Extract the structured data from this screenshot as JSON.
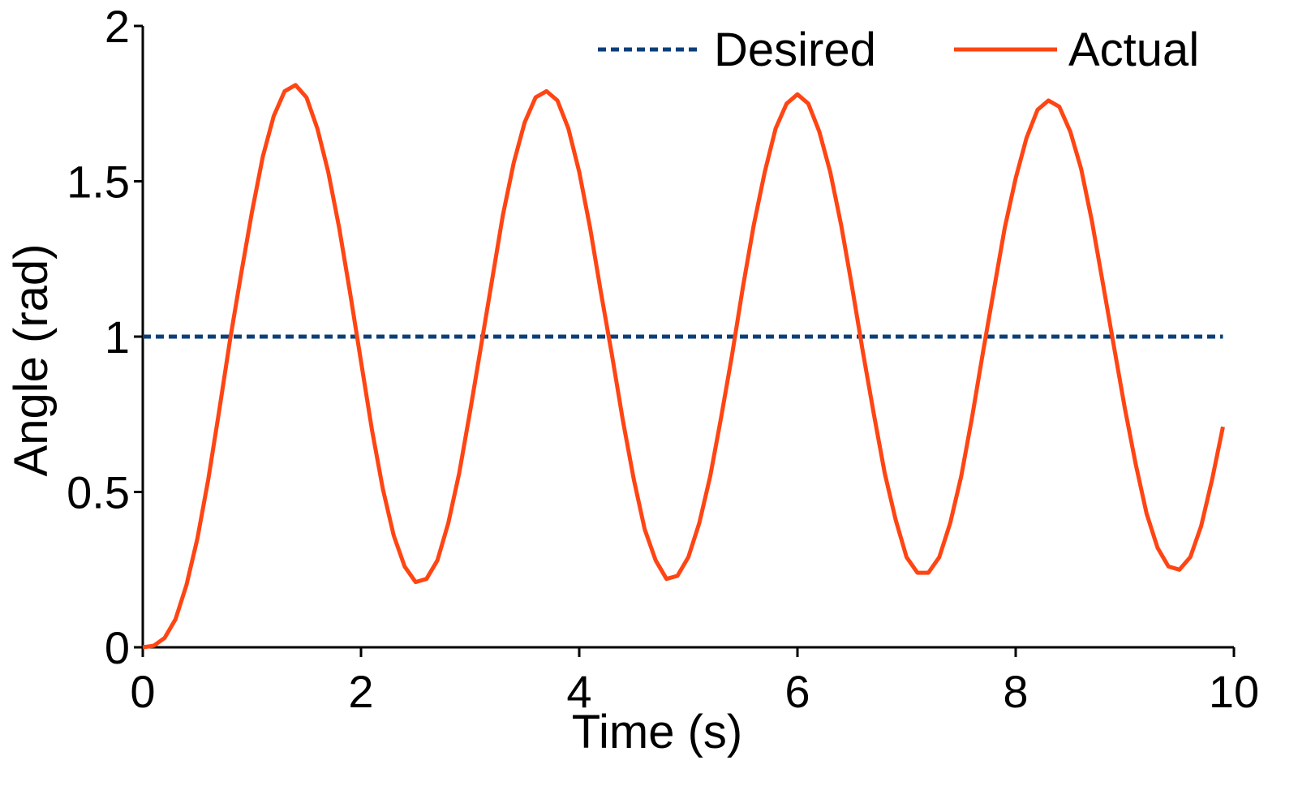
{
  "chart_data": {
    "type": "line",
    "title": "",
    "xlabel": "Time (s)",
    "ylabel": "Angle (rad)",
    "xlim": [
      0,
      10
    ],
    "ylim": [
      0,
      2
    ],
    "grid": false,
    "legend_placement": "top-right",
    "x_ticks": [
      "0",
      "2",
      "4",
      "6",
      "8",
      "10"
    ],
    "y_ticks": [
      "0",
      "0.5",
      "1",
      "1.5",
      "2"
    ],
    "series": [
      {
        "name": "Desired",
        "style": "dashed",
        "color": "#0b3f7a",
        "x": [
          0,
          9.9
        ],
        "y": [
          1.0,
          1.0
        ]
      },
      {
        "name": "Actual",
        "style": "solid",
        "color": "#ff4513",
        "x": [
          0,
          0.1,
          0.2,
          0.3,
          0.4,
          0.5,
          0.6,
          0.7,
          0.8,
          0.9,
          1.0,
          1.1,
          1.2,
          1.3,
          1.4,
          1.5,
          1.6,
          1.7,
          1.8,
          1.9,
          2.0,
          2.1,
          2.2,
          2.3,
          2.4,
          2.5,
          2.6,
          2.7,
          2.8,
          2.9,
          3.0,
          3.1,
          3.2,
          3.3,
          3.4,
          3.5,
          3.6,
          3.7,
          3.8,
          3.9,
          4.0,
          4.1,
          4.2,
          4.3,
          4.4,
          4.5,
          4.6,
          4.7,
          4.8,
          4.9,
          5.0,
          5.1,
          5.2,
          5.3,
          5.4,
          5.5,
          5.6,
          5.7,
          5.8,
          5.9,
          6.0,
          6.1,
          6.2,
          6.3,
          6.4,
          6.5,
          6.6,
          6.7,
          6.8,
          6.9,
          7.0,
          7.1,
          7.2,
          7.3,
          7.4,
          7.5,
          7.6,
          7.7,
          7.8,
          7.9,
          8.0,
          8.1,
          8.2,
          8.3,
          8.4,
          8.5,
          8.6,
          8.7,
          8.8,
          8.9,
          9.0,
          9.1,
          9.2,
          9.3,
          9.4,
          9.5,
          9.6,
          9.7,
          9.8,
          9.9
        ],
        "y": [
          0.0,
          0.005,
          0.03,
          0.09,
          0.2,
          0.35,
          0.54,
          0.76,
          0.99,
          1.2,
          1.4,
          1.58,
          1.71,
          1.79,
          1.81,
          1.77,
          1.67,
          1.53,
          1.35,
          1.14,
          0.92,
          0.7,
          0.51,
          0.36,
          0.26,
          0.21,
          0.22,
          0.28,
          0.4,
          0.56,
          0.76,
          0.97,
          1.18,
          1.39,
          1.56,
          1.69,
          1.77,
          1.79,
          1.76,
          1.67,
          1.53,
          1.35,
          1.14,
          0.94,
          0.73,
          0.54,
          0.38,
          0.28,
          0.22,
          0.23,
          0.29,
          0.4,
          0.55,
          0.74,
          0.94,
          1.16,
          1.36,
          1.53,
          1.67,
          1.75,
          1.78,
          1.75,
          1.66,
          1.53,
          1.36,
          1.16,
          0.95,
          0.75,
          0.56,
          0.41,
          0.29,
          0.24,
          0.24,
          0.29,
          0.4,
          0.55,
          0.74,
          0.95,
          1.15,
          1.35,
          1.51,
          1.64,
          1.73,
          1.76,
          1.74,
          1.66,
          1.54,
          1.37,
          1.17,
          0.97,
          0.77,
          0.59,
          0.43,
          0.32,
          0.26,
          0.25,
          0.29,
          0.39,
          0.54,
          0.71
        ]
      }
    ]
  }
}
